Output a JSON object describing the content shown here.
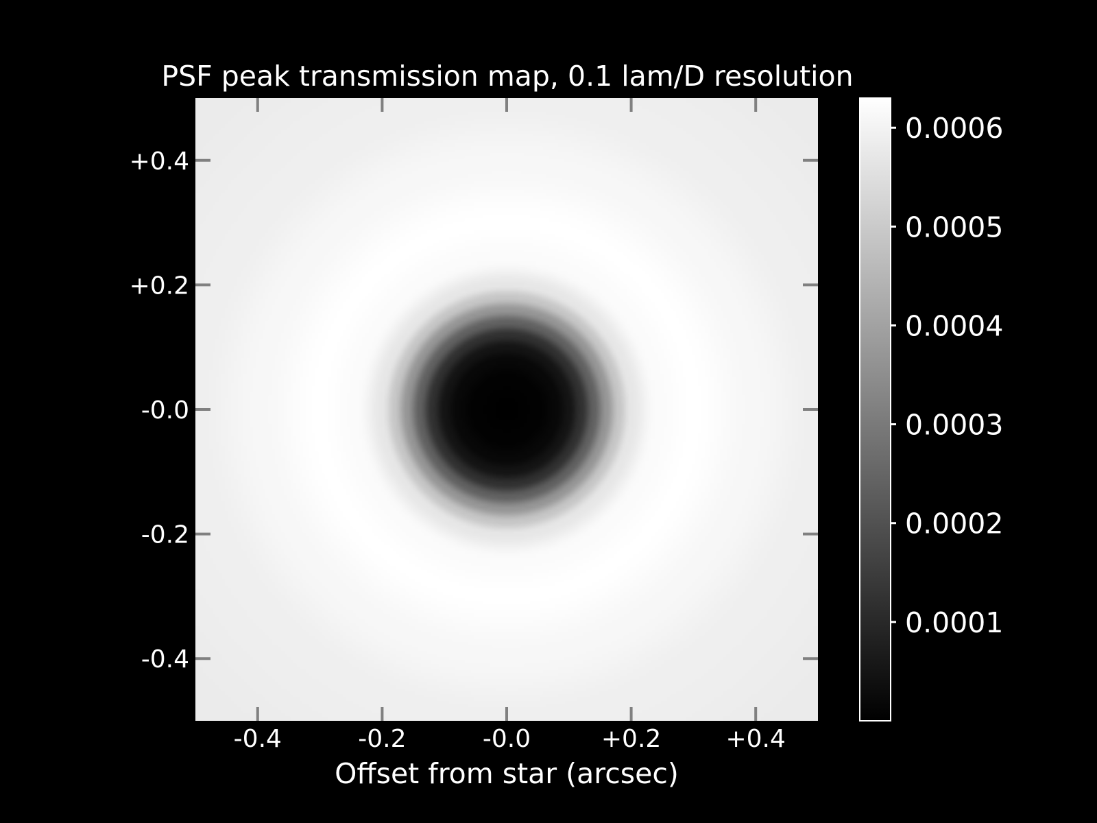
{
  "chart_data": {
    "type": "heatmap",
    "title": "PSF peak transmission map, 0.1 lam/D resolution",
    "xlabel": "Offset from star (arcsec)",
    "ylabel": "",
    "xlim": [
      -0.5,
      0.5
    ],
    "ylim": [
      -0.5,
      0.5
    ],
    "x_ticks": [
      -0.4,
      -0.2,
      0.0,
      0.2,
      0.4
    ],
    "x_tick_labels": [
      "-0.4",
      "-0.2",
      "-0.0",
      "+0.2",
      "+0.4"
    ],
    "y_ticks": [
      0.4,
      0.2,
      0.0,
      -0.2,
      -0.4
    ],
    "y_tick_labels": [
      "+0.4",
      "+0.2",
      "-0.0",
      "-0.2",
      "-0.4"
    ],
    "colormap": "gray",
    "colorbar": {
      "vmin": 0.0,
      "vmax": 0.00063,
      "ticks": [
        0.0006,
        0.0005,
        0.0004,
        0.0003,
        0.0002,
        0.0001
      ],
      "tick_labels": [
        "0.0006",
        "0.0005",
        "0.0004",
        "0.0003",
        "0.0002",
        "0.0001"
      ]
    },
    "radial_profile": {
      "r_arcsec": [
        0.0,
        0.05,
        0.08,
        0.1,
        0.12,
        0.14,
        0.16,
        0.18,
        0.2,
        0.24,
        0.3,
        0.4,
        0.5,
        0.7
      ],
      "value": [
        0.0,
        5e-06,
        2e-05,
        5e-05,
        0.00012,
        0.00024,
        0.00037,
        0.00049,
        0.00057,
        0.00062,
        0.00063,
        0.00061,
        0.00059,
        0.00058
      ]
    },
    "grid": false,
    "background": "#000000",
    "foreground": "#ffffff",
    "tick_color": "#808080"
  }
}
